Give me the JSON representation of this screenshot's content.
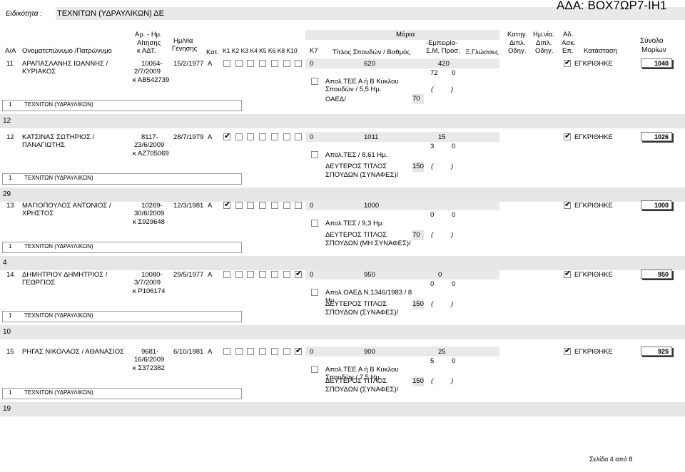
{
  "top": {
    "label": "Ειδικότητα :",
    "specialty": "ΤΕΧΝΙΤΩΝ (ΥΔΡΑΥΛΙΚΩΝ) ΔΕ",
    "ada": "ΑΔΑ: ΒΟΧ7ΩΡ7-ΙΗ1"
  },
  "header": {
    "aa": "Α/Α",
    "name": "Ονοματεπώνυμο /Πατρώνυμο",
    "app_line1": "Αρ. - Ημ.",
    "app_line2": "Αίτησης",
    "app_line3": "κ ΑΔΤ.",
    "dob_line1": "Ημ/νία",
    "dob_line2": "Γένησης",
    "kat": "Κατ.",
    "k_cols": [
      "Κ1",
      "Κ2",
      "Κ3",
      "Κ4",
      "Κ5",
      "Κ6",
      "Κ8",
      "Κ10"
    ],
    "k7": "Κ7",
    "moria": "Μόρια",
    "title_studies": "Τίτλος Σπουδών / Βαθμός",
    "exp_line1": "-Εμπειρία-",
    "exp_line2": "Σ.Μ. Προσ.",
    "lang": "Ξ.Γλώσσες",
    "cat_line1": "Κατηγ.",
    "cat_line2": "Διπλ.",
    "cat_line3": "Οδηγ.",
    "date_line1": "Ημ.νία.",
    "date_line2": "Διπλ.",
    "date_line3": "Οδηγ.",
    "ad_line1": "Αδ.",
    "ad_line2": "Ασκ.",
    "ad_line3": "Επ.",
    "status": "Κατάσταση",
    "sum_line1": "Σύνολο",
    "sum_line2": "Μορίων"
  },
  "records": [
    {
      "aa": "11",
      "name1": "ΑΡΑΠΑΣΛΑΝΗΣ ΙΩΑΝΝΗΣ /",
      "name2": "ΚΥΡΙΑΚΟΣ",
      "app1": "10064-",
      "app2": "2/7/2009",
      "app3": "κ ΑΒ542739",
      "dob": "15/2/1977",
      "kat": "Α",
      "checks": [
        false,
        false,
        false,
        false,
        false,
        false,
        false,
        false
      ],
      "k7": "0",
      "m_title": "620",
      "m_exp": "420",
      "m_a": "72",
      "m_b": "0",
      "degree1": "Απολ.ΤΕΕ Α ή Β Κύκλου",
      "degree2": "Σπουδών / 5,5 Ημ.",
      "second_title": "ΟΑΕΔ/",
      "second_title2": "",
      "second_pts": "70",
      "paren_l": "(",
      "paren_r": ")",
      "status": "ΕΓΚΡΙΘΗΚΕ",
      "total": "1040",
      "spec_n": "1",
      "spec_t": "ΤΕΧΝΙΤΩΝ (ΥΔΡΑΥΛΙΚΩΝ)",
      "band": "12"
    },
    {
      "aa": "12",
      "name1": "ΚΑΤΣΙΝΑΣ ΣΩΤΗΡΙΟΣ /",
      "name2": "ΠΑΝΑΓΙΩΤΗΣ",
      "app1": "8117-",
      "app2": "23/6/2009",
      "app3": "κ ΑΖ705069",
      "dob": "28/7/1979",
      "kat": "Α",
      "checks": [
        true,
        false,
        false,
        false,
        false,
        false,
        false,
        false
      ],
      "k7": "0",
      "m_title": "1011",
      "m_exp": "15",
      "m_a": "3",
      "m_b": "0",
      "degree1": "Απολ.ΤΕΣ / 8,61 Ημ.",
      "degree2": "",
      "second_title": "ΔΕΥΤΕΡΟΣ ΤΙΤΛΟΣ",
      "second_title2": "ΣΠΟΥΔΩΝ (ΣΥΝΑΦΕΣ)/",
      "second_pts": "150",
      "paren_l": "(",
      "paren_r": ")",
      "status": "ΕΓΚΡΙΘΗΚΕ",
      "total": "1026",
      "spec_n": "1",
      "spec_t": "ΤΕΧΝΙΤΩΝ (ΥΔΡΑΥΛΙΚΩΝ)",
      "band": "29"
    },
    {
      "aa": "13",
      "name1": "ΜΑΓΙΟΠΟΥΛΟΣ ΑΝΤΩΝΙΟΣ /",
      "name2": "ΧΡΗΣΤΟΣ",
      "app1": "10269-",
      "app2": "30/6/2009",
      "app3": "κ Σ929648",
      "dob": "12/3/1981",
      "kat": "Α",
      "checks": [
        true,
        false,
        false,
        false,
        false,
        false,
        false,
        false
      ],
      "k7": "0",
      "m_title": "1000",
      "m_exp": "",
      "m_a": "0",
      "m_b": "0",
      "degree1": "Απολ.ΤΕΣ / 9,3 Ημ.",
      "degree2": "",
      "second_title": "ΔΕΥΤΕΡΟΣ ΤΙΤΛΟΣ",
      "second_title2": "ΣΠΟΥΔΩΝ (ΜΗ ΣΥΝΑΦΕΣ)/",
      "second_pts": "70",
      "paren_l": "(",
      "paren_r": ")",
      "status": "ΕΓΚΡΙΘΗΚΕ",
      "total": "1000",
      "spec_n": "1",
      "spec_t": "ΤΕΧΝΙΤΩΝ (ΥΔΡΑΥΛΙΚΩΝ)",
      "band": "4"
    },
    {
      "aa": "14",
      "name1": "ΔΗΜΗΤΡΙΟΥ ΔΗΜΗΤΡΙΟΣ /",
      "name2": "ΓΕΩΡΓΙΟΣ",
      "app1": "10080-",
      "app2": "3/7/2009",
      "app3": "κ Ρ106174",
      "dob": "29/5/1977",
      "kat": "Α",
      "checks": [
        false,
        false,
        false,
        false,
        false,
        false,
        true,
        false
      ],
      "k7": "0",
      "m_title": "950",
      "m_exp": "0",
      "m_a": "0",
      "m_b": "0",
      "degree1": "Απολ.ΟΑΕΔ Ν.1346/1983 / 8",
      "degree2": "Ημ.",
      "second_title": "ΔΕΥΤΕΡΟΣ ΤΙΤΛΟΣ",
      "second_title2": "ΣΠΟΥΔΩΝ (ΣΥΝΑΦΕΣ)/",
      "second_pts": "150",
      "paren_l": "(",
      "paren_r": ")",
      "status": "ΕΓΚΡΙΘΗΚΕ",
      "total": "950",
      "spec_n": "1",
      "spec_t": "ΤΕΧΝΙΤΩΝ (ΥΔΡΑΥΛΙΚΩΝ)",
      "band": "10"
    },
    {
      "aa": "15",
      "name1": "ΡΗΓΑΣ ΝΙΚΟΛΑΟΣ / ΑΘΑΝΑΣΙΟΣ",
      "name2": "",
      "app1": "9681-",
      "app2": "16/6/2009",
      "app3": "κ Σ372382",
      "dob": "6/10/1981",
      "kat": "Α",
      "checks": [
        false,
        false,
        false,
        false,
        false,
        false,
        true,
        false
      ],
      "k7": "0",
      "m_title": "900",
      "m_exp": "25",
      "m_a": "5",
      "m_b": "0",
      "degree1": "Απολ.ΤΕΕ Α ή Β Κύκλου",
      "degree2": "Σπουδών / 7,5 Ημ.",
      "second_title": "ΔΕΥΤΕΡΟΣ ΤΙΤΛΟΣ",
      "second_title2": "ΣΠΟΥΔΩΝ (ΣΥΝΑΦΕΣ)/",
      "second_pts": "150",
      "paren_l": "(",
      "paren_r": ")",
      "status": "ΕΓΚΡΙΘΗΚΕ",
      "total": "925",
      "spec_n": "1",
      "spec_t": "ΤΕΧΝΙΤΩΝ (ΥΔΡΑΥΛΙΚΩΝ)",
      "band": "19"
    }
  ],
  "footer": {
    "page": "Σελίδα 4 από 8"
  }
}
